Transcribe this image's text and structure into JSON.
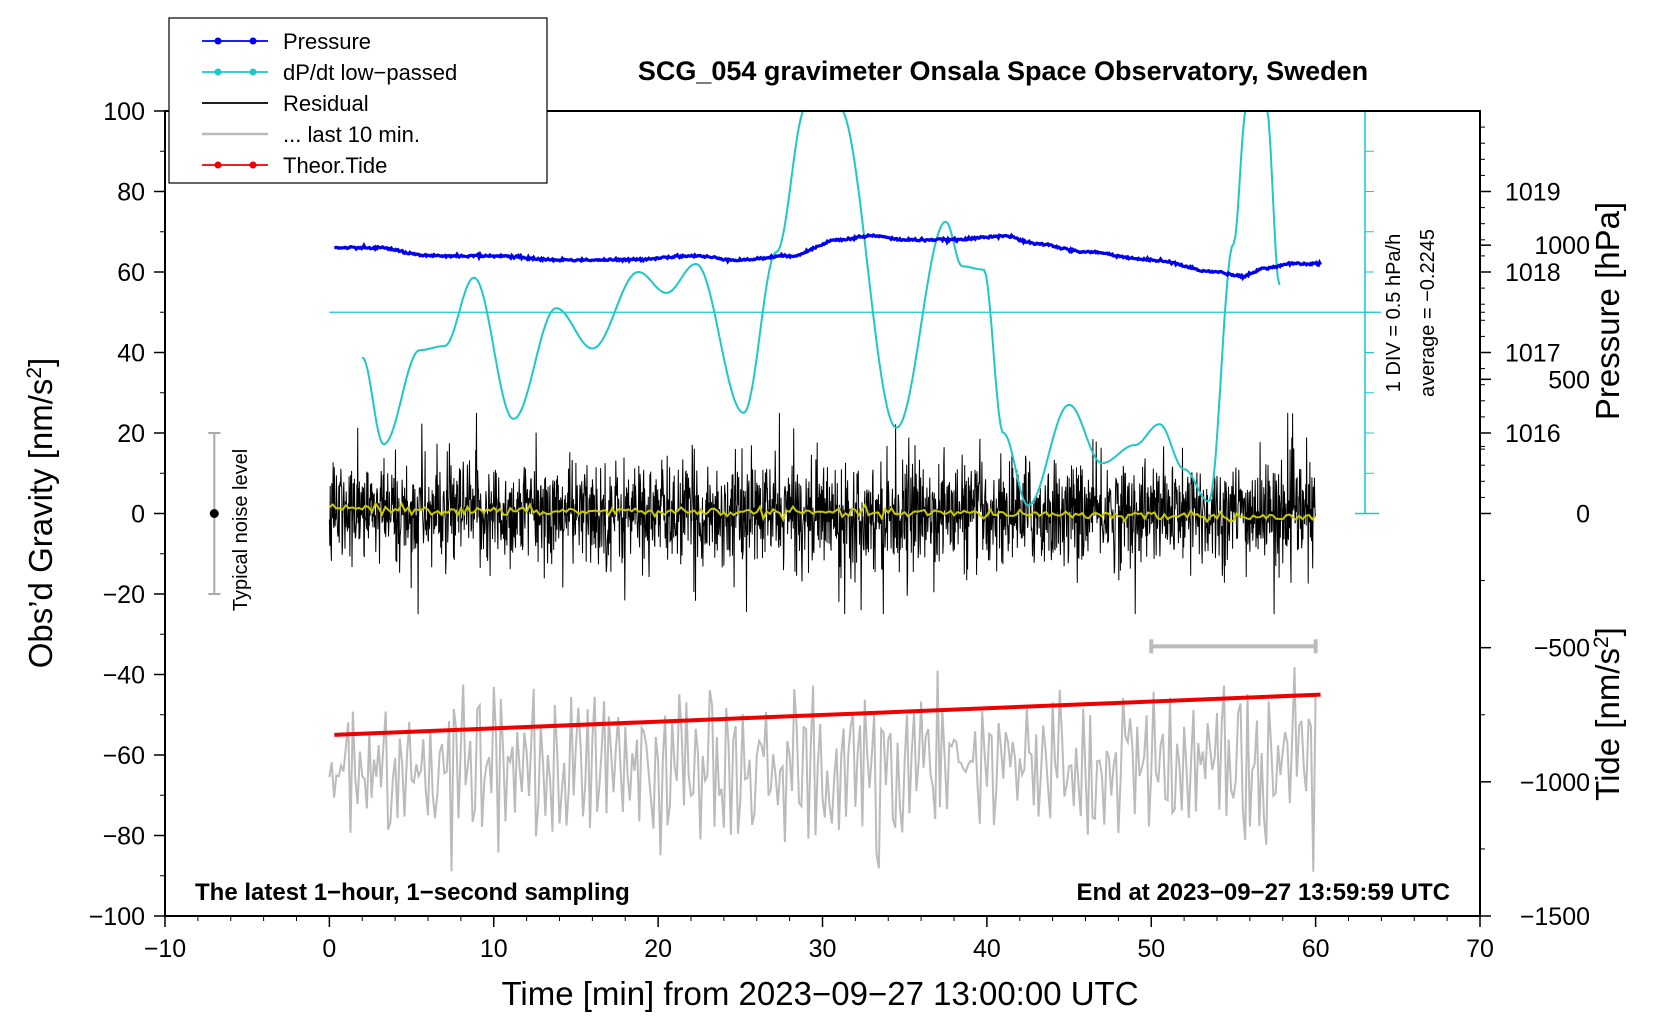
{
  "chart_data": {
    "type": "line",
    "title": "SCG_054 gravimeter Onsala Space Observatory, Sweden",
    "xlabel": "Time [min] from 2023−09−27 13:00:00 UTC",
    "ylabel_left": "Obs’d Gravity [nm/s²]",
    "ylabel_left_base": "Obs’d Gravity [nm/s",
    "ylabel_left_sup": "2",
    "ylabel_left_close": "]",
    "ylabel_right_top": "Pressure [hPa]",
    "ylabel_right_bottom": "Tide [nm/s²]",
    "ylabel_right_bottom_base": "Tide [nm/s",
    "ylabel_right_bottom_sup": "2",
    "ylabel_right_bottom_close": "]",
    "xlim": [
      -10,
      70
    ],
    "ylim_left": [
      -100,
      100
    ],
    "pressure_axis_range": [
      1015,
      1020
    ],
    "tide_axis_range": [
      -1500,
      1500
    ],
    "x_ticks": [
      "−10",
      "0",
      "10",
      "20",
      "30",
      "40",
      "50",
      "60",
      "70"
    ],
    "x_tick_values": [
      -10,
      0,
      10,
      20,
      30,
      40,
      50,
      60,
      70
    ],
    "y_left_ticks": [
      "100",
      "80",
      "60",
      "40",
      "20",
      "0",
      "−20",
      "−40",
      "−60",
      "−80",
      "−100"
    ],
    "y_left_tick_values": [
      100,
      80,
      60,
      40,
      20,
      0,
      -20,
      -40,
      -60,
      -80,
      -100
    ],
    "pressure_ticks": [
      "1019",
      "1018",
      "1017",
      "1016"
    ],
    "pressure_tick_values": [
      1019,
      1018,
      1017,
      1016
    ],
    "tide_ticks": [
      "1000",
      "500",
      "0",
      "−500",
      "−1000",
      "−1500"
    ],
    "tide_tick_values": [
      1000,
      500,
      0,
      -500,
      -1000,
      -1500
    ],
    "legend": [
      {
        "label": "Pressure",
        "color": "#0000ee",
        "marker": true
      },
      {
        "label": "dP/dt low−passed",
        "color": "#1fc7c7",
        "marker": true
      },
      {
        "label": "Residual",
        "color": "#000000",
        "marker": false
      },
      {
        "label": "... last 10 min.",
        "color": "#bbbbbb",
        "marker": false
      },
      {
        "label": "Theor.Tide",
        "color": "#ee0000",
        "marker": true
      }
    ],
    "annotations": {
      "bottom_left": "The latest 1−hour, 1−second sampling",
      "bottom_right": "End at 2023−09−27 13:59:59 UTC",
      "noise": "Typical noise level",
      "div_label": "1 DIV = 0.5 hPa/h",
      "average_label": "average = −0.2245"
    },
    "noise_bar": {
      "x": -7,
      "y": 0,
      "low": -20,
      "high": 20
    },
    "series": [
      {
        "name": "Pressure",
        "unit": "hPa",
        "color": "#0000ee",
        "x": [
          0,
          3,
          6,
          10,
          14,
          18,
          22,
          25,
          28,
          31,
          33,
          35,
          38,
          41,
          43,
          46,
          50,
          54,
          55.5,
          57,
          58.5,
          60
        ],
        "values": [
          1018.3,
          1018.3,
          1018.2,
          1018.2,
          1018.15,
          1018.15,
          1018.2,
          1018.15,
          1018.2,
          1018.4,
          1018.45,
          1018.4,
          1018.4,
          1018.45,
          1018.35,
          1018.25,
          1018.15,
          1018.0,
          1017.95,
          1018.05,
          1018.1,
          1018.1
        ]
      },
      {
        "name": "dP/dt low−passed",
        "unit": "hPa/h (1 DIV = 0.5 hPa/h)",
        "color": "#1fc7c7",
        "x": [
          2,
          3.3,
          5.5,
          7,
          8.8,
          11.2,
          13.8,
          16,
          18.8,
          20.5,
          22.3,
          25.2,
          27.2,
          29,
          31,
          34.5,
          37.5,
          38.5,
          39.8,
          41,
          42.5,
          45,
          47,
          49,
          50.5,
          52,
          53.5,
          55,
          55.8,
          57,
          57.8
        ],
        "values": [
          38.8,
          17.2,
          40.6,
          41.6,
          58.6,
          23.5,
          51.0,
          41.0,
          60.0,
          54.8,
          62.0,
          25.0,
          65.0,
          101.0,
          101.0,
          21.3,
          72.5,
          61.4,
          60.6,
          20.0,
          2.0,
          27.0,
          12.5,
          17.0,
          22.2,
          11.0,
          3.0,
          67.0,
          101.0,
          101.0,
          56.8
        ]
      },
      {
        "name": "Residual",
        "unit": "nm/s²",
        "color": "#000000",
        "x_range": [
          0,
          60
        ],
        "typical_range": [
          -22,
          22
        ],
        "max_spike": 25,
        "min_spike": -25
      },
      {
        "name": "Residual (smoothed)",
        "unit": "nm/s²",
        "color": "#c8c800",
        "x": [
          0,
          10,
          20,
          30,
          40,
          50,
          60
        ],
        "values": [
          1.5,
          0.5,
          0.5,
          0.2,
          0.0,
          -0.5,
          -1.0
        ]
      },
      {
        "name": "... last 10 min.",
        "unit": "nm/s²",
        "color": "#bbbbbb",
        "x_range": [
          0,
          60
        ],
        "center": -63,
        "amplitude": 17
      },
      {
        "name": "Theor.Tide",
        "unit": "nm/s²",
        "color": "#ee0000",
        "x": [
          0.3,
          60.3
        ],
        "values": [
          -55,
          -45
        ]
      }
    ],
    "last10_bar": {
      "x_from": 50,
      "x_to": 60,
      "y": -33
    }
  }
}
